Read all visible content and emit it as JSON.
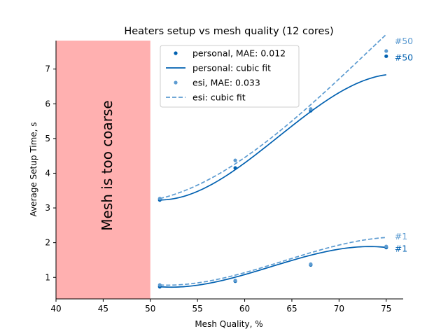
{
  "chart_data": {
    "type": "line",
    "title": "Heaters setup vs mesh quality (12 cores)",
    "xlabel": "Mesh Quality, %",
    "ylabel": "Average Setup Time, s",
    "xlim": [
      40,
      76.8
    ],
    "ylim": [
      0.38,
      7.82
    ],
    "xticks": [
      40,
      45,
      50,
      55,
      60,
      65,
      70,
      75
    ],
    "yticks": [
      1,
      2,
      3,
      4,
      5,
      6,
      7
    ],
    "grid": false,
    "legend_position": "top-center",
    "region": {
      "x_from": 40,
      "x_to": 50,
      "label": "Mesh is too coarse",
      "color": "#ffb0b0"
    },
    "colors": {
      "personal": "#0060b0",
      "esi": "#5c9bd1",
      "axis": "#000000"
    },
    "series": [
      {
        "name": "personal",
        "style": "points",
        "legend_label": "personal, MAE: 0.012",
        "groups": [
          {
            "id": "#1",
            "x": [
              51,
              59,
              67,
              75
            ],
            "y": [
              0.73,
              0.89,
              1.36,
              1.86
            ]
          },
          {
            "id": "#50",
            "x": [
              51,
              59,
              67,
              75
            ],
            "y": [
              3.23,
              4.15,
              5.8,
              7.37
            ]
          }
        ]
      },
      {
        "name": "personal-fit",
        "style": "solid",
        "legend_label": "personal: cubic fit",
        "groups": [
          {
            "id": "#1",
            "coef": [
              0.73,
              -0.02,
              0.0088,
              -0.00025
            ]
          },
          {
            "id": "#50",
            "coef": [
              3.23,
              0.0,
              0.0173,
              -0.00046
            ]
          }
        ]
      },
      {
        "name": "esi",
        "style": "points",
        "legend_label": "esi, MAE: 0.033",
        "groups": [
          {
            "id": "#1",
            "x": [
              51,
              59,
              67,
              75
            ],
            "y": [
              0.78,
              0.91,
              1.38,
              1.89
            ]
          },
          {
            "id": "#50",
            "x": [
              51,
              59,
              67,
              75
            ],
            "y": [
              3.27,
              4.37,
              5.85,
              7.52
            ]
          }
        ]
      },
      {
        "name": "esi-fit",
        "style": "dashed",
        "legend_label": "esi: cubic fit",
        "groups": [
          {
            "id": "#1",
            "coef": [
              0.78,
              -0.011,
              0.0073,
              -0.000186
            ]
          },
          {
            "id": "#50",
            "coef": [
              3.27,
              0.065,
              0.0085,
              -0.000125
            ]
          }
        ]
      }
    ],
    "annotations": [
      {
        "text": "#50",
        "series": "esi",
        "x": 75,
        "y": 7.52
      },
      {
        "text": "#50",
        "series": "personal",
        "x": 75,
        "y": 7.37
      },
      {
        "text": "#1",
        "series": "esi",
        "x": 75,
        "y": 1.89
      },
      {
        "text": "#1",
        "series": "personal",
        "x": 75,
        "y": 1.86
      }
    ]
  }
}
